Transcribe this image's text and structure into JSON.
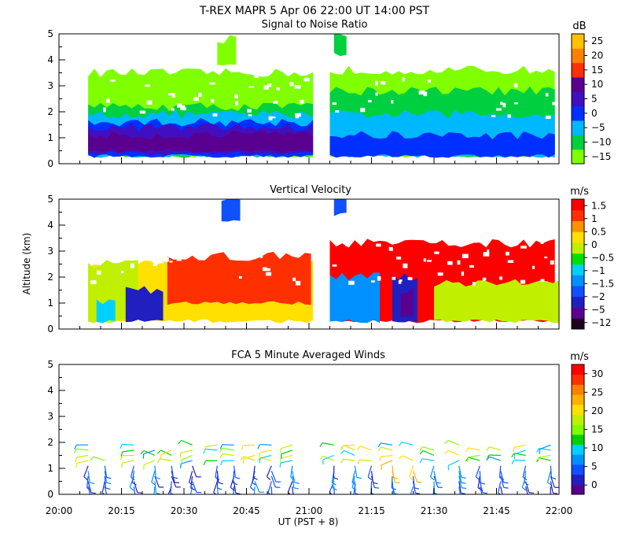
{
  "header": {
    "title": "T-REX  MAPR  5 Apr 06  22:00 UT  14:00  PST"
  },
  "x_axis": {
    "label": "UT  (PST + 8)",
    "range": [
      0,
      120
    ],
    "ticks": [
      {
        "v": 0,
        "label": "20:00"
      },
      {
        "v": 15,
        "label": "20:15"
      },
      {
        "v": 30,
        "label": "20:30"
      },
      {
        "v": 45,
        "label": "20:45"
      },
      {
        "v": 60,
        "label": "21:00"
      },
      {
        "v": 75,
        "label": "21:15"
      },
      {
        "v": 90,
        "label": "21:30"
      },
      {
        "v": 105,
        "label": "21:45"
      },
      {
        "v": 120,
        "label": "22:00"
      }
    ]
  },
  "y_axis": {
    "label": "Altitude (km)",
    "range": [
      0,
      5
    ],
    "ticks": [
      "0",
      "1",
      "2",
      "3",
      "4",
      "5"
    ]
  },
  "chart_data": [
    {
      "type": "heatmap",
      "title": "Signal to Noise Ratio",
      "xlabel": "UT  (PST + 8)",
      "ylabel": "Altitude (km)",
      "xlim": [
        0,
        120
      ],
      "ylim": [
        0,
        5
      ],
      "colorbar": {
        "unit": "dB",
        "colors": [
          "#80ff00",
          "#00d040",
          "#00b8ff",
          "#0030ff",
          "#4010c0",
          "#5a0090",
          "#ff3000",
          "#ff8000",
          "#ffc000"
        ],
        "labels": [
          "−15",
          "−10",
          "−5",
          "0",
          "5",
          "10",
          "15",
          "20",
          "25"
        ]
      },
      "data_gap": [
        61,
        65
      ],
      "bands": [
        {
          "from": 7,
          "to": 61,
          "ymin": 0.3,
          "ymax": 3.5,
          "color": "#80ff00"
        },
        {
          "from": 7,
          "to": 61,
          "ymin": 0.3,
          "ymax": 2.2,
          "color": "#00d040"
        },
        {
          "from": 7,
          "to": 61,
          "ymin": 0.3,
          "ymax": 1.9,
          "color": "#00b8ff"
        },
        {
          "from": 7,
          "to": 61,
          "ymin": 0.3,
          "ymax": 1.6,
          "color": "#0030ff"
        },
        {
          "from": 7,
          "to": 61,
          "ymin": 0.4,
          "ymax": 1.4,
          "color": "#4010c0"
        },
        {
          "from": 7,
          "to": 61,
          "ymin": 0.5,
          "ymax": 1.1,
          "color": "#5a0090"
        },
        {
          "from": 65,
          "to": 120,
          "ymin": 0.3,
          "ymax": 3.6,
          "color": "#80ff00"
        },
        {
          "from": 65,
          "to": 120,
          "ymin": 0.3,
          "ymax": 2.8,
          "color": "#00d040"
        },
        {
          "from": 65,
          "to": 120,
          "ymin": 0.3,
          "ymax": 1.9,
          "color": "#00b8ff"
        },
        {
          "from": 65,
          "to": 120,
          "ymin": 0.3,
          "ymax": 1.1,
          "color": "#0030ff"
        },
        {
          "from": 38,
          "to": 43,
          "ymin": 3.8,
          "ymax": 4.8,
          "color": "#80ff00"
        },
        {
          "from": 66,
          "to": 69,
          "ymin": 4.2,
          "ymax": 5.0,
          "color": "#00d040"
        }
      ]
    },
    {
      "type": "heatmap",
      "title": "Vertical Velocity",
      "xlabel": "UT  (PST + 8)",
      "ylabel": "Altitude (km)",
      "xlim": [
        0,
        120
      ],
      "ylim": [
        0,
        5
      ],
      "colorbar": {
        "unit": "m/s",
        "colors": [
          "#200020",
          "#5a0090",
          "#2020c0",
          "#1050ff",
          "#0090ff",
          "#00d0ff",
          "#00e000",
          "#c0f000",
          "#ffe000",
          "#ff9000",
          "#ff3000",
          "#ff0000"
        ],
        "labels": [
          "−12",
          "−5",
          "−2",
          "−1.5",
          "−1",
          "−0.5",
          "0",
          "0.5",
          "1",
          "1.5"
        ]
      },
      "data_gap": [
        61,
        65
      ],
      "bands": [
        {
          "from": 7,
          "to": 61,
          "ymin": 0.3,
          "ymax": 2.5,
          "color": "#ffe000"
        },
        {
          "from": 7,
          "to": 20,
          "ymin": 0.3,
          "ymax": 2.5,
          "color": "#c0f000"
        },
        {
          "from": 26,
          "to": 61,
          "ymin": 1.0,
          "ymax": 2.8,
          "color": "#ff3000"
        },
        {
          "from": 16,
          "to": 25,
          "ymin": 0.3,
          "ymax": 1.5,
          "color": "#2020c0"
        },
        {
          "from": 9,
          "to": 14,
          "ymin": 0.3,
          "ymax": 1.0,
          "color": "#00d0ff"
        },
        {
          "from": 65,
          "to": 120,
          "ymin": 0.3,
          "ymax": 3.3,
          "color": "#ff0000"
        },
        {
          "from": 65,
          "to": 78,
          "ymin": 0.3,
          "ymax": 2.0,
          "color": "#0090ff"
        },
        {
          "from": 80,
          "to": 86,
          "ymin": 0.3,
          "ymax": 2.0,
          "color": "#2020c0"
        },
        {
          "from": 82,
          "to": 85,
          "ymin": 0.5,
          "ymax": 1.5,
          "color": "#5a0090"
        },
        {
          "from": 90,
          "to": 120,
          "ymin": 0.3,
          "ymax": 1.8,
          "color": "#c0f000"
        },
        {
          "from": 39,
          "to": 44,
          "ymin": 4.2,
          "ymax": 5.0,
          "color": "#1050ff"
        },
        {
          "from": 66,
          "to": 69,
          "ymin": 4.4,
          "ymax": 5.0,
          "color": "#1050ff"
        }
      ]
    },
    {
      "type": "scatter",
      "title": "FCA 5 Minute Averaged Winds",
      "xlabel": "UT  (PST + 8)",
      "ylabel": "Altitude (km)",
      "xlim": [
        0,
        120
      ],
      "ylim": [
        0,
        5
      ],
      "colorbar": {
        "unit": "m/s",
        "colors": [
          "#5a0090",
          "#2020c0",
          "#1050ff",
          "#0090ff",
          "#00d0ff",
          "#00d000",
          "#80ff00",
          "#c0f000",
          "#ffe000",
          "#ffb000",
          "#ff8000",
          "#ff3000",
          "#ff0000"
        ],
        "labels": [
          "0",
          "5",
          "10",
          "15",
          "20",
          "25",
          "30"
        ]
      },
      "time_columns": [
        7,
        11,
        18,
        23,
        27,
        32,
        38,
        42,
        47,
        51,
        56,
        66,
        71,
        75,
        80,
        85,
        90,
        96,
        101,
        106,
        112,
        118
      ],
      "altitudes": [
        0.3,
        0.5,
        0.7,
        0.9,
        1.1,
        1.3,
        1.5,
        1.7,
        1.9
      ],
      "note": "wind barbs colored by speed"
    }
  ]
}
